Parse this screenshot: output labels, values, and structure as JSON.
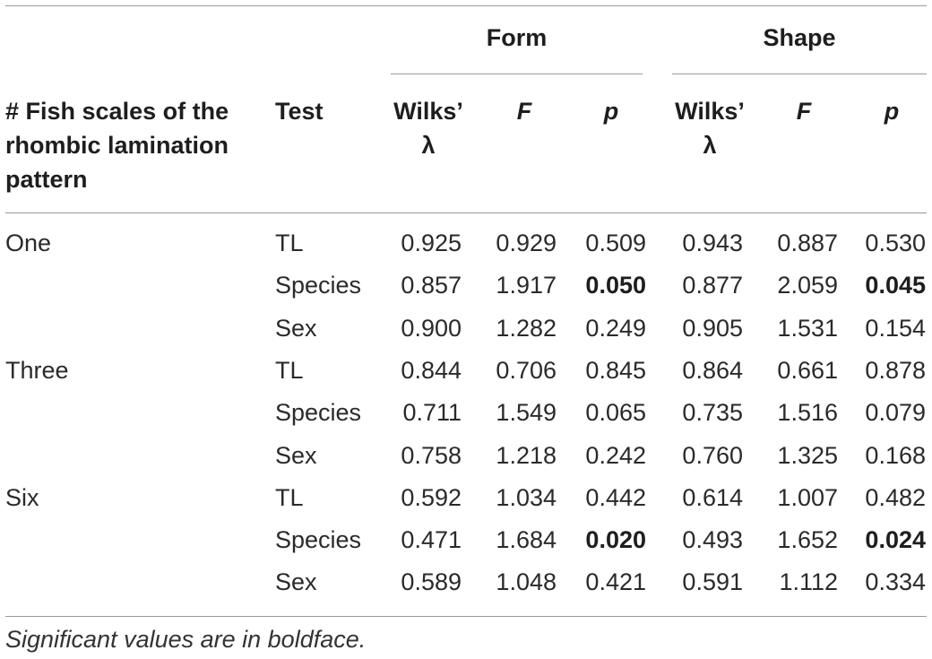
{
  "header": {
    "group_form": "Form",
    "group_shape": "Shape",
    "col_fish_scales": "# Fish scales of the rhombic lamination pattern",
    "col_fish_scales_lines": [
      "# Fish scales of the",
      "rhombic lamination",
      "pattern"
    ],
    "col_test": "Test",
    "col_wilks_line1": "Wilks’",
    "col_wilks_line2": "λ",
    "col_f": "F",
    "col_p": "p"
  },
  "rows": [
    {
      "group": "One",
      "test": "TL",
      "form_wilks": "0.925",
      "form_f": "0.929",
      "form_p": "0.509",
      "form_p_sig": false,
      "shape_wilks": "0.943",
      "shape_f": "0.887",
      "shape_p": "0.530",
      "shape_p_sig": false
    },
    {
      "group": "",
      "test": "Species",
      "form_wilks": "0.857",
      "form_f": "1.917",
      "form_p": "0.050",
      "form_p_sig": true,
      "shape_wilks": "0.877",
      "shape_f": "2.059",
      "shape_p": "0.045",
      "shape_p_sig": true
    },
    {
      "group": "",
      "test": "Sex",
      "form_wilks": "0.900",
      "form_f": "1.282",
      "form_p": "0.249",
      "form_p_sig": false,
      "shape_wilks": "0.905",
      "shape_f": "1.531",
      "shape_p": "0.154",
      "shape_p_sig": false
    },
    {
      "group": "Three",
      "test": "TL",
      "form_wilks": "0.844",
      "form_f": "0.706",
      "form_p": "0.845",
      "form_p_sig": false,
      "shape_wilks": "0.864",
      "shape_f": "0.661",
      "shape_p": "0.878",
      "shape_p_sig": false
    },
    {
      "group": "",
      "test": "Species",
      "form_wilks": "0.711",
      "form_f": "1.549",
      "form_p": "0.065",
      "form_p_sig": false,
      "shape_wilks": "0.735",
      "shape_f": "1.516",
      "shape_p": "0.079",
      "shape_p_sig": false
    },
    {
      "group": "",
      "test": "Sex",
      "form_wilks": "0.758",
      "form_f": "1.218",
      "form_p": "0.242",
      "form_p_sig": false,
      "shape_wilks": "0.760",
      "shape_f": "1.325",
      "shape_p": "0.168",
      "shape_p_sig": false
    },
    {
      "group": "Six",
      "test": "TL",
      "form_wilks": "0.592",
      "form_f": "1.034",
      "form_p": "0.442",
      "form_p_sig": false,
      "shape_wilks": "0.614",
      "shape_f": "1.007",
      "shape_p": "0.482",
      "shape_p_sig": false
    },
    {
      "group": "",
      "test": "Species",
      "form_wilks": "0.471",
      "form_f": "1.684",
      "form_p": "0.020",
      "form_p_sig": true,
      "shape_wilks": "0.493",
      "shape_f": "1.652",
      "shape_p": "0.024",
      "shape_p_sig": true
    },
    {
      "group": "",
      "test": "Sex",
      "form_wilks": "0.589",
      "form_f": "1.048",
      "form_p": "0.421",
      "form_p_sig": false,
      "shape_wilks": "0.591",
      "shape_f": "1.112",
      "shape_p": "0.334",
      "shape_p_sig": false
    }
  ],
  "footnote": "Significant values are in boldface."
}
